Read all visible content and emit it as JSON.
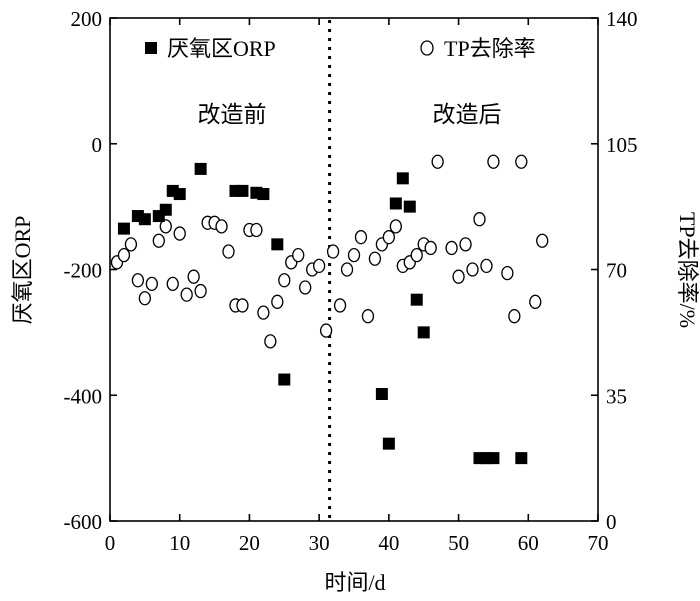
{
  "chart_data": {
    "type": "scatter",
    "xlabel": "时间/d",
    "ylabel_left": "厌氧区ORP",
    "ylabel_right": "TP去除率/%",
    "xlim": [
      0,
      70
    ],
    "ylim_left": [
      -600,
      200
    ],
    "ylim_right": [
      0,
      140
    ],
    "x_ticks": [
      0,
      10,
      20,
      30,
      40,
      50,
      60,
      70
    ],
    "y_ticks_left": [
      -600,
      -400,
      -200,
      0,
      200
    ],
    "y_ticks_right": [
      0,
      35,
      70,
      105,
      140
    ],
    "legend_position": "top",
    "divider_x": 31.5,
    "phase_labels": [
      "改造前",
      "改造后"
    ],
    "series": [
      {
        "name": "厌氧区ORP",
        "axis": "left",
        "marker": "filled-square",
        "points": [
          [
            2,
            -135
          ],
          [
            4,
            -115
          ],
          [
            5,
            -120
          ],
          [
            7,
            -115
          ],
          [
            8,
            -105
          ],
          [
            9,
            -75
          ],
          [
            10,
            -80
          ],
          [
            13,
            -40
          ],
          [
            18,
            -75
          ],
          [
            19,
            -75
          ],
          [
            21,
            -78
          ],
          [
            22,
            -80
          ],
          [
            24,
            -160
          ],
          [
            25,
            -375
          ],
          [
            39,
            -398
          ],
          [
            40,
            -477
          ],
          [
            41,
            -95
          ],
          [
            42,
            -55
          ],
          [
            43,
            -100
          ],
          [
            44,
            -248
          ],
          [
            45,
            -300
          ],
          [
            53,
            -500
          ],
          [
            54,
            -500
          ],
          [
            55,
            -500
          ],
          [
            59,
            -500
          ]
        ]
      },
      {
        "name": "TP去除率",
        "axis": "right",
        "marker": "open-circle",
        "points": [
          [
            1,
            72
          ],
          [
            2,
            74
          ],
          [
            3,
            77
          ],
          [
            4,
            67
          ],
          [
            5,
            62
          ],
          [
            6,
            66
          ],
          [
            7,
            78
          ],
          [
            8,
            82
          ],
          [
            9,
            66
          ],
          [
            10,
            80
          ],
          [
            11,
            63
          ],
          [
            12,
            68
          ],
          [
            13,
            64
          ],
          [
            14,
            83
          ],
          [
            15,
            83
          ],
          [
            16,
            82
          ],
          [
            17,
            75
          ],
          [
            18,
            60
          ],
          [
            19,
            60
          ],
          [
            20,
            81
          ],
          [
            21,
            81
          ],
          [
            22,
            58
          ],
          [
            23,
            50
          ],
          [
            24,
            61
          ],
          [
            25,
            67
          ],
          [
            26,
            72
          ],
          [
            27,
            74
          ],
          [
            28,
            65
          ],
          [
            29,
            70
          ],
          [
            30,
            71
          ],
          [
            31,
            53
          ],
          [
            32,
            75
          ],
          [
            33,
            60
          ],
          [
            34,
            70
          ],
          [
            35,
            74
          ],
          [
            36,
            79
          ],
          [
            37,
            57
          ],
          [
            38,
            73
          ],
          [
            39,
            77
          ],
          [
            40,
            79
          ],
          [
            41,
            82
          ],
          [
            42,
            71
          ],
          [
            43,
            72
          ],
          [
            44,
            74
          ],
          [
            45,
            77
          ],
          [
            46,
            76
          ],
          [
            47,
            100
          ],
          [
            49,
            76
          ],
          [
            50,
            68
          ],
          [
            51,
            77
          ],
          [
            52,
            70
          ],
          [
            53,
            84
          ],
          [
            54,
            71
          ],
          [
            55,
            100
          ],
          [
            57,
            69
          ],
          [
            58,
            57
          ],
          [
            59,
            100
          ],
          [
            61,
            61
          ],
          [
            62,
            78
          ]
        ]
      }
    ]
  }
}
